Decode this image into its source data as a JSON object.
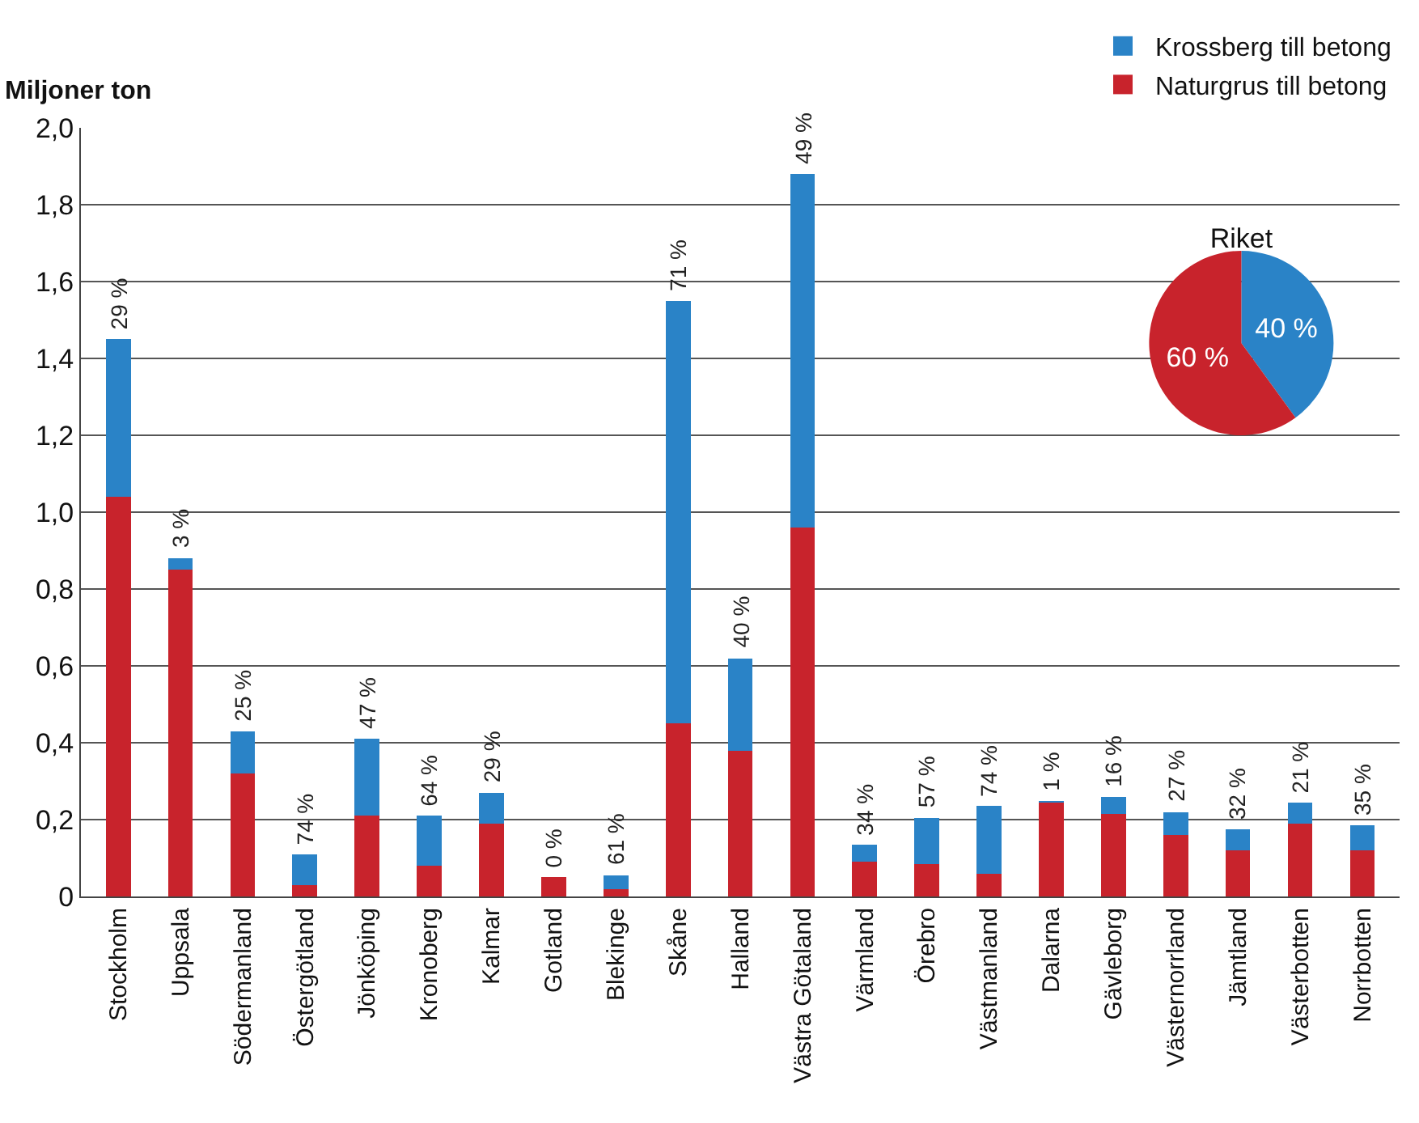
{
  "chart_data": [
    {
      "type": "bar",
      "stacked": true,
      "ylabel": "Miljoner ton",
      "categories": [
        "Stockholm",
        "Uppsala",
        "Södermanland",
        "Östergötland",
        "Jönköping",
        "Kronoberg",
        "Kalmar",
        "Gotland",
        "Blekinge",
        "Skåne",
        "Halland",
        "Västra Götaland",
        "Värmland",
        "Örebro",
        "Västmanland",
        "Dalarna",
        "Gävleborg",
        "Västernorrland",
        "Jämtland",
        "Västerbotten",
        "Norrbotten"
      ],
      "series": [
        {
          "name": "Naturgrus till betong",
          "color": "#c8232c",
          "values": [
            1.04,
            0.85,
            0.32,
            0.03,
            0.21,
            0.08,
            0.19,
            0.05,
            0.02,
            0.45,
            0.38,
            0.96,
            0.09,
            0.085,
            0.06,
            0.245,
            0.215,
            0.16,
            0.12,
            0.19,
            0.12
          ]
        },
        {
          "name": "Krossberg till betong",
          "color": "#2a83c7",
          "values": [
            0.41,
            0.03,
            0.11,
            0.08,
            0.2,
            0.13,
            0.08,
            0,
            0.035,
            1.1,
            0.24,
            0.92,
            0.045,
            0.12,
            0.175,
            0.003,
            0.045,
            0.06,
            0.055,
            0.055,
            0.065
          ]
        }
      ],
      "annotations": [
        {
          "text": "29 %",
          "x": "Stockholm",
          "y": 1.45
        },
        {
          "text": "3 %",
          "x": "Uppsala",
          "y": 0.88
        },
        {
          "text": "25 %",
          "x": "Södermanland",
          "y": 0.43
        },
        {
          "text": "74 %",
          "x": "Östergötland",
          "y": 0.11
        },
        {
          "text": "47 %",
          "x": "Jönköping",
          "y": 0.41
        },
        {
          "text": "64 %",
          "x": "Kronoberg",
          "y": 0.21
        },
        {
          "text": "29 %",
          "x": "Kalmar",
          "y": 0.27
        },
        {
          "text": "0 %",
          "x": "Gotland",
          "y": 0.05
        },
        {
          "text": "61 %",
          "x": "Blekinge",
          "y": 0.055
        },
        {
          "text": "71 %",
          "x": "Skåne",
          "y": 1.55
        },
        {
          "text": "40 %",
          "x": "Halland",
          "y": 0.62
        },
        {
          "text": "49 %",
          "x": "Västra Götaland",
          "y": 1.88
        },
        {
          "text": "34 %",
          "x": "Värmland",
          "y": 0.135
        },
        {
          "text": "57 %",
          "x": "Örebro",
          "y": 0.205
        },
        {
          "text": "74 %",
          "x": "Västmanland",
          "y": 0.235
        },
        {
          "text": "1 %",
          "x": "Dalarna",
          "y": 0.248
        },
        {
          "text": "16 %",
          "x": "Gävleborg",
          "y": 0.26
        },
        {
          "text": "27 %",
          "x": "Västernorrland",
          "y": 0.22
        },
        {
          "text": "32 %",
          "x": "Jämtland",
          "y": 0.175
        },
        {
          "text": "21 %",
          "x": "Västerbotten",
          "y": 0.245
        },
        {
          "text": "35 %",
          "x": "Norrbotten",
          "y": 0.185
        }
      ],
      "ylim": [
        0,
        2.0
      ],
      "yticks": [
        0,
        {
          "value": 0.2,
          "label": "0,2"
        },
        {
          "value": 0.4,
          "label": "0,4"
        },
        {
          "value": 0.6,
          "label": "0,6"
        },
        {
          "value": 0.8,
          "label": "0,8"
        },
        {
          "value": 1.0,
          "label": "1,0"
        },
        {
          "value": 1.2,
          "label": "1,2"
        },
        {
          "value": 1.4,
          "label": "1,4"
        },
        {
          "value": 1.6,
          "label": "1,6"
        },
        {
          "value": 1.8,
          "label": "1,8"
        },
        {
          "value": 2.0,
          "label": "2,0"
        }
      ],
      "grid": "y",
      "legend": "top right"
    },
    {
      "type": "pie",
      "title": "Riket",
      "categories": [
        null,
        null
      ],
      "values": [
        40,
        60
      ],
      "colors": [
        "#2a83c7",
        "#c8232c"
      ],
      "value_labels": [
        "40 %",
        "60 %"
      ]
    }
  ]
}
